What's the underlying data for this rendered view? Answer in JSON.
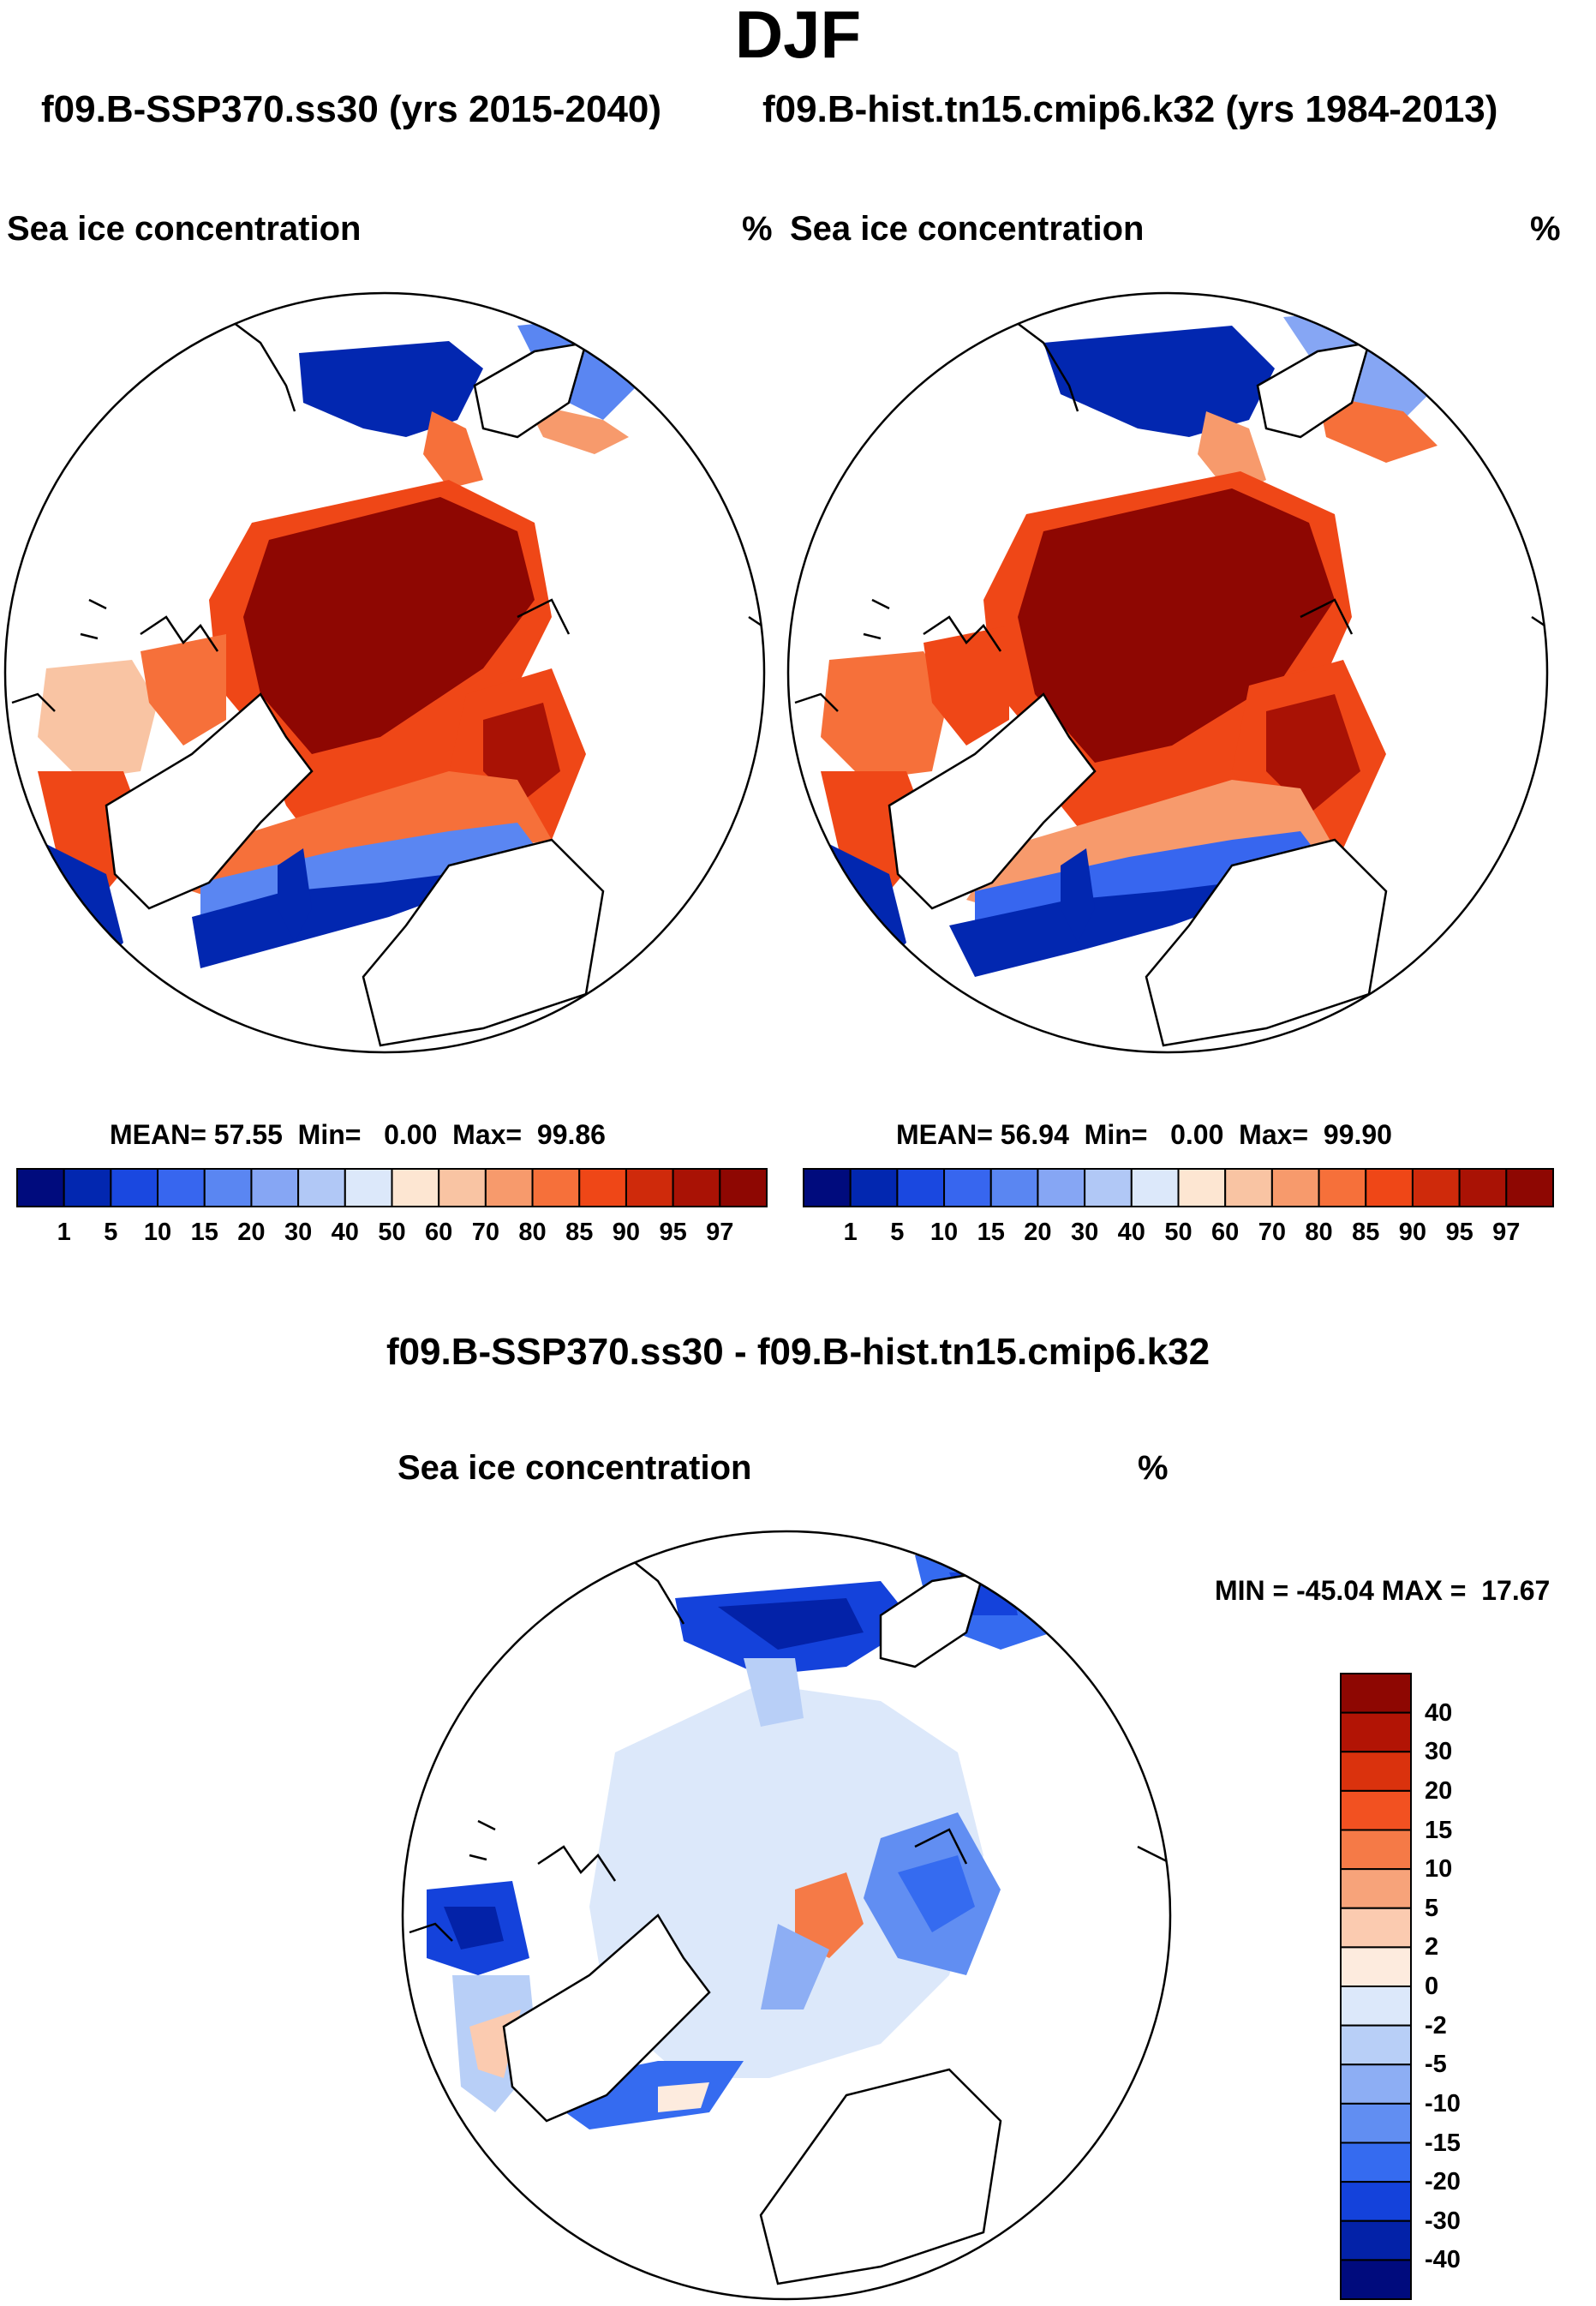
{
  "season": "DJF",
  "left_case": "f09.B-SSP370.ss30 (yrs 2015-2040)",
  "right_case": "f09.B-hist.tn15.cmip6.k32 (yrs 1984-2013)",
  "diff_title": "f09.B-SSP370.ss30 - f09.B-hist.tn15.cmip6.k32",
  "panels": {
    "left": {
      "variable": "Sea ice concentration",
      "units": "%",
      "mean": "57.55",
      "min": "0.00",
      "max": "99.86"
    },
    "right": {
      "variable": "Sea ice concentration",
      "units": "%",
      "mean": "56.94",
      "min": "0.00",
      "max": "99.90"
    },
    "diff": {
      "variable": "Sea ice concentration",
      "units": "%",
      "min": "-45.04",
      "max": "17.67"
    }
  },
  "labels": {
    "mean": "MEAN=",
    "min": "Min=",
    "max": "Max=",
    "diff_minmax_min": "MIN =",
    "diff_minmax_max": "MAX ="
  },
  "abs_colorbar": {
    "ticks": [
      "1",
      "5",
      "10",
      "15",
      "20",
      "30",
      "40",
      "50",
      "60",
      "70",
      "80",
      "85",
      "90",
      "95",
      "97"
    ],
    "colors": [
      "#000b7d",
      "#0227b0",
      "#1a48e0",
      "#3766ef",
      "#5a86f2",
      "#86a6f4",
      "#b1c8f6",
      "#dce8fa",
      "#fde6d2",
      "#f9c4a3",
      "#f79a6c",
      "#f6703a",
      "#ef4717",
      "#cf2a0b",
      "#a91205",
      "#8e0702"
    ]
  },
  "diff_colorbar": {
    "ticks": [
      "40",
      "30",
      "20",
      "15",
      "10",
      "5",
      "2",
      "0",
      "-2",
      "-5",
      "-10",
      "-15",
      "-20",
      "-30",
      "-40"
    ],
    "colors": [
      "#8e0702",
      "#b21405",
      "#da320d",
      "#f25121",
      "#f57a47",
      "#f7a37a",
      "#fbcbb0",
      "#fdebde",
      "#dce8fa",
      "#b8cff7",
      "#8daef4",
      "#618ef2",
      "#356bf0",
      "#1442db",
      "#0322a8",
      "#000b7d"
    ]
  }
}
